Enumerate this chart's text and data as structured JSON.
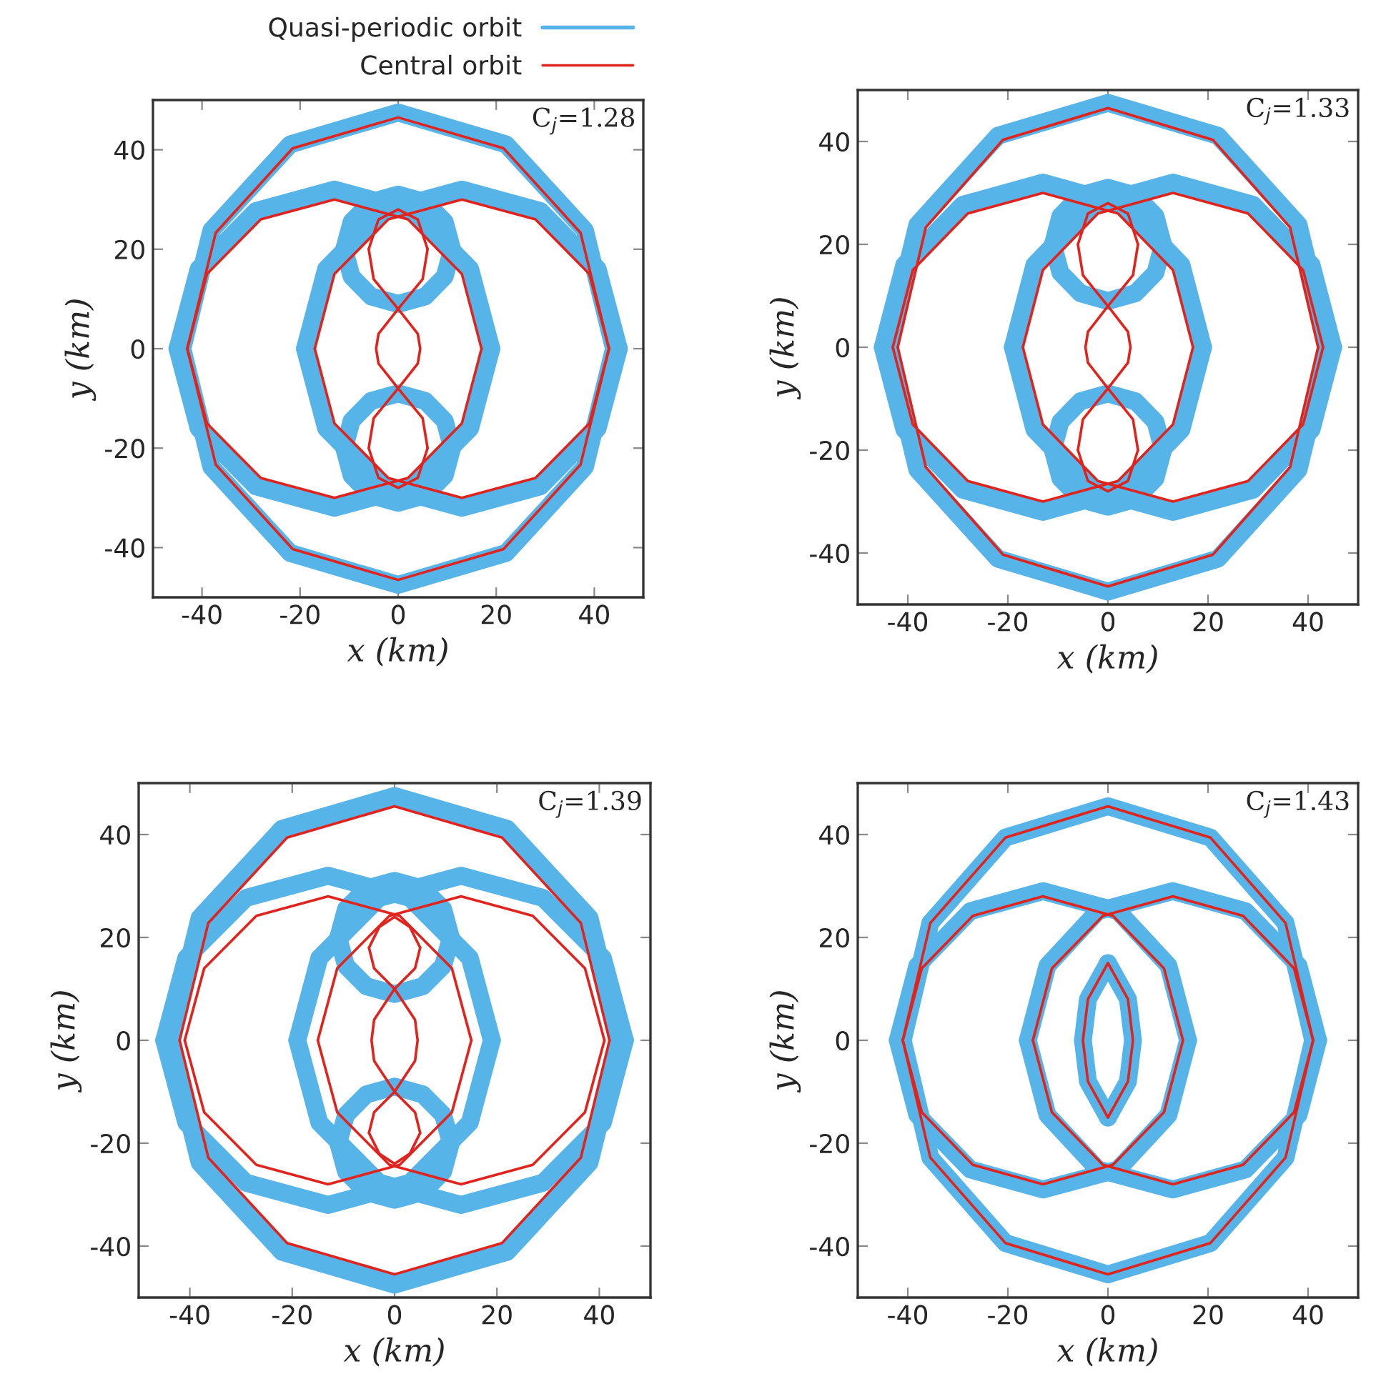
{
  "chart_data": [
    {
      "type": "line",
      "xlabel": "x (km)",
      "ylabel": "y (km)",
      "annotations": [
        "C$_{j}$=1.28"
      ],
      "xlim": [
        -50,
        50
      ],
      "ylim": [
        -50,
        50
      ],
      "xticks": [
        -40,
        -20,
        0,
        20,
        40
      ],
      "yticks": [
        -40,
        -20,
        0,
        20,
        40
      ],
      "legend": "top",
      "series": [
        {
          "name": "Quasi-periodic orbit",
          "color": "#56b4e9",
          "x": [
            -44,
            -38.1,
            -22,
            0,
            22,
            38.1,
            44
          ],
          "values": [
            0,
            23.8,
            41.1,
            47.5,
            41.1,
            23.8,
            0
          ]
        },
        {
          "color": "#56b4e9",
          "x": [
            -44,
            -38.1,
            -22,
            0,
            22,
            38.1,
            44
          ],
          "values": [
            0,
            -23.8,
            -41.1,
            -47.5,
            -41.1,
            -23.8,
            0
          ]
        },
        {
          "color": "#56b4e9",
          "x": [
            -19,
            -14.7,
            -3,
            13,
            29,
            40.7,
            45
          ],
          "values": [
            0,
            16,
            27.7,
            32,
            27.7,
            16,
            0
          ]
        },
        {
          "color": "#56b4e9",
          "x": [
            -19,
            -14.7,
            -3,
            13,
            29,
            40.7,
            45
          ],
          "values": [
            0,
            -16,
            -27.7,
            -32,
            -27.7,
            -16,
            0
          ]
        },
        {
          "color": "#56b4e9",
          "x": [
            -45,
            -40.7,
            -29,
            -13,
            3,
            14.7,
            19
          ],
          "values": [
            0,
            16,
            27.7,
            32,
            27.7,
            16,
            0
          ]
        },
        {
          "color": "#56b4e9",
          "x": [
            -45,
            -40.7,
            -29,
            -13,
            3,
            14.7,
            19
          ],
          "values": [
            0,
            -16,
            -27.7,
            -32,
            -27.7,
            -16,
            0
          ]
        },
        {
          "color": "#56b4e9",
          "x": [
            -11,
            -9.5,
            -5.5,
            0,
            5.5,
            9.5,
            11
          ],
          "values": [
            20,
            25.5,
            29.5,
            31,
            29.5,
            25.5,
            20
          ]
        },
        {
          "color": "#56b4e9",
          "x": [
            -11,
            -9.5,
            -5.5,
            0,
            5.5,
            9.5,
            11
          ],
          "values": [
            20,
            14.5,
            10.5,
            9,
            10.5,
            14.5,
            20
          ]
        },
        {
          "color": "#56b4e9",
          "x": [
            -11,
            -9.5,
            -5.5,
            0,
            5.5,
            9.5,
            11
          ],
          "values": [
            -20,
            -14.5,
            -10.5,
            -9,
            -10.5,
            -14.5,
            -20
          ]
        },
        {
          "color": "#56b4e9",
          "x": [
            -11,
            -9.5,
            -5.5,
            0,
            5.5,
            9.5,
            11
          ],
          "values": [
            -20,
            -25.5,
            -29.5,
            -31,
            -29.5,
            -25.5,
            -20
          ]
        },
        {
          "name": "Central orbit",
          "color": "#e0231c",
          "x": [
            -43,
            -37.2,
            -21.5,
            0,
            21.5,
            37.2,
            43
          ],
          "values": [
            0,
            23.3,
            40.3,
            46.5,
            40.3,
            23.3,
            0
          ]
        },
        {
          "color": "#e0231c",
          "x": [
            -43,
            -37.2,
            -21.5,
            0,
            21.5,
            37.2,
            43
          ],
          "values": [
            0,
            -23.3,
            -40.3,
            -46.5,
            -40.3,
            -23.3,
            0
          ]
        },
        {
          "color": "#e0231c",
          "x": [
            -17,
            -13,
            -2,
            13,
            28,
            39,
            43
          ],
          "values": [
            0,
            15,
            26,
            30,
            26,
            15,
            0
          ]
        },
        {
          "color": "#e0231c",
          "x": [
            -17,
            -13,
            -2,
            13,
            28,
            39,
            43
          ],
          "values": [
            0,
            -15,
            -26,
            -30,
            -26,
            -15,
            0
          ]
        },
        {
          "color": "#e0231c",
          "x": [
            -43,
            -39,
            -28,
            -13,
            2,
            13,
            17
          ],
          "values": [
            0,
            15,
            26,
            30,
            26,
            15,
            0
          ]
        },
        {
          "color": "#e0231c",
          "x": [
            -43,
            -39,
            -28,
            -13,
            2,
            13,
            17
          ],
          "values": [
            0,
            -15,
            -26,
            -30,
            -26,
            -15,
            0
          ]
        },
        {
          "color": "#e0231c",
          "x": [
            -6,
            -4,
            0,
            4,
            6
          ],
          "values": [
            20,
            26,
            28,
            26,
            20
          ]
        },
        {
          "color": "#e0231c",
          "x": [
            -6,
            -5,
            0,
            4,
            4.5,
            4,
            0,
            -5,
            -6
          ],
          "values": [
            20,
            14,
            8,
            3,
            0,
            -3,
            -8,
            -14,
            -20
          ]
        },
        {
          "color": "#e0231c",
          "x": [
            6,
            5,
            0,
            -4,
            -4.5,
            -4,
            0,
            5,
            6
          ],
          "values": [
            20,
            14,
            8,
            3,
            0,
            -3,
            -8,
            -14,
            -20
          ]
        },
        {
          "color": "#e0231c",
          "x": [
            -6,
            -4,
            0,
            4,
            6
          ],
          "values": [
            -20,
            -26,
            -28,
            -26,
            -20
          ]
        }
      ]
    },
    {
      "type": "line",
      "xlabel": "x (km)",
      "ylabel": "y (km)",
      "annotations": [
        "C$_{j}$=1.33"
      ],
      "xlim": [
        -50,
        50
      ],
      "ylim": [
        -50,
        50
      ],
      "xticks": [
        -40,
        -20,
        0,
        20,
        40
      ],
      "yticks": [
        -40,
        -20,
        0,
        20,
        40
      ],
      "series": [
        {
          "color": "#56b4e9",
          "x": [
            -44,
            -38.1,
            -22,
            0,
            22,
            38.1,
            44
          ],
          "values": [
            0,
            23.8,
            41.1,
            47.5,
            41.1,
            23.8,
            0
          ]
        },
        {
          "color": "#56b4e9",
          "x": [
            -44,
            -38.1,
            -22,
            0,
            22,
            38.1,
            44
          ],
          "values": [
            0,
            -23.8,
            -41.1,
            -47.5,
            -41.1,
            -23.8,
            0
          ]
        },
        {
          "color": "#56b4e9",
          "x": [
            -19,
            -14.7,
            -3,
            13,
            29,
            40.7,
            45
          ],
          "values": [
            0,
            16,
            27.7,
            32,
            27.7,
            16,
            0
          ]
        },
        {
          "color": "#56b4e9",
          "x": [
            -19,
            -14.7,
            -3,
            13,
            29,
            40.7,
            45
          ],
          "values": [
            0,
            -16,
            -27.7,
            -32,
            -27.7,
            -16,
            0
          ]
        },
        {
          "color": "#56b4e9",
          "x": [
            -45,
            -40.7,
            -29,
            -13,
            3,
            14.7,
            19
          ],
          "values": [
            0,
            16,
            27.7,
            32,
            27.7,
            16,
            0
          ]
        },
        {
          "color": "#56b4e9",
          "x": [
            -45,
            -40.7,
            -29,
            -13,
            3,
            14.7,
            19
          ],
          "values": [
            0,
            -16,
            -27.7,
            -32,
            -27.7,
            -16,
            0
          ]
        },
        {
          "color": "#56b4e9",
          "x": [
            -11,
            -9.5,
            -5.5,
            0,
            5.5,
            9.5,
            11
          ],
          "values": [
            20,
            25.5,
            29.5,
            31,
            29.5,
            25.5,
            20
          ]
        },
        {
          "color": "#56b4e9",
          "x": [
            -11,
            -9.5,
            -5.5,
            0,
            5.5,
            9.5,
            11
          ],
          "values": [
            20,
            14.5,
            10.5,
            9,
            10.5,
            14.5,
            20
          ]
        },
        {
          "color": "#56b4e9",
          "x": [
            -11,
            -9.5,
            -5.5,
            0,
            5.5,
            9.5,
            11
          ],
          "values": [
            -20,
            -14.5,
            -10.5,
            -9,
            -10.5,
            -14.5,
            -20
          ]
        },
        {
          "color": "#56b4e9",
          "x": [
            -11,
            -9.5,
            -5.5,
            0,
            5.5,
            9.5,
            11
          ],
          "values": [
            -20,
            -25.5,
            -29.5,
            -31,
            -29.5,
            -25.5,
            -20
          ]
        },
        {
          "color": "#e0231c",
          "x": [
            -42,
            -36.4,
            -21,
            0,
            21,
            36.4,
            42
          ],
          "values": [
            0,
            23.3,
            40.3,
            46.5,
            40.3,
            23.3,
            0
          ]
        },
        {
          "color": "#e0231c",
          "x": [
            -42,
            -36.4,
            -21,
            0,
            21,
            36.4,
            42
          ],
          "values": [
            0,
            -23.3,
            -40.3,
            -46.5,
            -40.3,
            -23.3,
            0
          ]
        },
        {
          "color": "#e0231c",
          "x": [
            -17,
            -13,
            -2,
            13,
            28,
            39,
            43
          ],
          "values": [
            0,
            15,
            26,
            30,
            26,
            15,
            0
          ]
        },
        {
          "color": "#e0231c",
          "x": [
            -17,
            -13,
            -2,
            13,
            28,
            39,
            43
          ],
          "values": [
            0,
            -15,
            -26,
            -30,
            -26,
            -15,
            0
          ]
        },
        {
          "color": "#e0231c",
          "x": [
            -43,
            -39,
            -28,
            -13,
            2,
            13,
            17
          ],
          "values": [
            0,
            15,
            26,
            30,
            26,
            15,
            0
          ]
        },
        {
          "color": "#e0231c",
          "x": [
            -43,
            -39,
            -28,
            -13,
            2,
            13,
            17
          ],
          "values": [
            0,
            -15,
            -26,
            -30,
            -26,
            -15,
            0
          ]
        },
        {
          "color": "#e0231c",
          "x": [
            -6,
            -4,
            0,
            4,
            6
          ],
          "values": [
            20,
            26,
            28,
            26,
            20
          ]
        },
        {
          "color": "#e0231c",
          "x": [
            -6,
            -5,
            0,
            4,
            4.5,
            4,
            0,
            -5,
            -6
          ],
          "values": [
            20,
            14,
            8,
            3,
            0,
            -3,
            -8,
            -14,
            -20
          ]
        },
        {
          "color": "#e0231c",
          "x": [
            6,
            5,
            0,
            -4,
            -4.5,
            -4,
            0,
            5,
            6
          ],
          "values": [
            20,
            14,
            8,
            3,
            0,
            -3,
            -8,
            -14,
            -20
          ]
        },
        {
          "color": "#e0231c",
          "x": [
            -6,
            -4,
            0,
            4,
            6
          ],
          "values": [
            -20,
            -26,
            -28,
            -26,
            -20
          ]
        }
      ]
    },
    {
      "type": "line",
      "xlabel": "x (km)",
      "ylabel": "y (km)",
      "annotations": [
        "C$_{j}$=1.39"
      ],
      "xlim": [
        -50,
        50
      ],
      "ylim": [
        -50,
        50
      ],
      "xticks": [
        -40,
        -20,
        0,
        20,
        40
      ],
      "yticks": [
        -40,
        -20,
        0,
        20,
        40
      ],
      "series": [
        {
          "color": "#56b4e9",
          "x": [
            -44,
            -38.1,
            -22,
            0,
            22,
            38.1,
            44
          ],
          "values": [
            0,
            23.8,
            41.1,
            47.5,
            41.1,
            23.8,
            0
          ]
        },
        {
          "color": "#56b4e9",
          "x": [
            -44,
            -38.1,
            -22,
            0,
            22,
            38.1,
            44
          ],
          "values": [
            0,
            -23.8,
            -41.1,
            -47.5,
            -41.1,
            -23.8,
            0
          ]
        },
        {
          "color": "#56b4e9",
          "x": [
            -19,
            -14.7,
            -3,
            13,
            29,
            40.7,
            45
          ],
          "values": [
            0,
            16,
            27.7,
            32,
            27.7,
            16,
            0
          ]
        },
        {
          "color": "#56b4e9",
          "x": [
            -19,
            -14.7,
            -3,
            13,
            29,
            40.7,
            45
          ],
          "values": [
            0,
            -16,
            -27.7,
            -32,
            -27.7,
            -16,
            0
          ]
        },
        {
          "color": "#56b4e9",
          "x": [
            -45,
            -40.7,
            -29,
            -13,
            3,
            14.7,
            19
          ],
          "values": [
            0,
            16,
            27.7,
            32,
            27.7,
            16,
            0
          ]
        },
        {
          "color": "#56b4e9",
          "x": [
            -45,
            -40.7,
            -29,
            -13,
            3,
            14.7,
            19
          ],
          "values": [
            0,
            -16,
            -27.7,
            -32,
            -27.7,
            -16,
            0
          ]
        },
        {
          "color": "#56b4e9",
          "x": [
            -11,
            -9.5,
            -5.5,
            0,
            5.5,
            9.5,
            11
          ],
          "values": [
            20,
            25.5,
            29.5,
            31,
            29.5,
            25.5,
            20
          ]
        },
        {
          "color": "#56b4e9",
          "x": [
            -11,
            -9.5,
            -5.5,
            0,
            5.5,
            9.5,
            11
          ],
          "values": [
            20,
            14.5,
            10.5,
            9,
            10.5,
            14.5,
            20
          ]
        },
        {
          "color": "#56b4e9",
          "x": [
            -11,
            -9.5,
            -5.5,
            0,
            5.5,
            9.5,
            11
          ],
          "values": [
            -20,
            -14.5,
            -10.5,
            -9,
            -10.5,
            -14.5,
            -20
          ]
        },
        {
          "color": "#56b4e9",
          "x": [
            -11,
            -9.5,
            -5.5,
            0,
            5.5,
            9.5,
            11
          ],
          "values": [
            -20,
            -25.5,
            -29.5,
            -31,
            -29.5,
            -25.5,
            -20
          ]
        },
        {
          "color": "#e0231c",
          "x": [
            -42,
            -36.4,
            -21,
            0,
            21,
            36.4,
            42
          ],
          "values": [
            0,
            22.8,
            39.4,
            45.5,
            39.4,
            22.8,
            0
          ]
        },
        {
          "color": "#e0231c",
          "x": [
            -42,
            -36.4,
            -21,
            0,
            21,
            36.4,
            42
          ],
          "values": [
            0,
            -22.8,
            -39.4,
            -45.5,
            -39.4,
            -22.8,
            0
          ]
        },
        {
          "color": "#e0231c",
          "x": [
            -15,
            -11.2,
            -1,
            13,
            27,
            37.2,
            41
          ],
          "values": [
            0,
            14,
            24.2,
            28,
            24.2,
            14,
            0
          ]
        },
        {
          "color": "#e0231c",
          "x": [
            -15,
            -11.2,
            -1,
            13,
            27,
            37.2,
            41
          ],
          "values": [
            0,
            -14,
            -24.2,
            -28,
            -24.2,
            -14,
            0
          ]
        },
        {
          "color": "#e0231c",
          "x": [
            -41,
            -37.2,
            -27,
            -13,
            1,
            11.2,
            15
          ],
          "values": [
            0,
            14,
            24.2,
            28,
            24.2,
            14,
            0
          ]
        },
        {
          "color": "#e0231c",
          "x": [
            -41,
            -37.2,
            -27,
            -13,
            1,
            11.2,
            15
          ],
          "values": [
            0,
            -14,
            -24.2,
            -28,
            -24.2,
            -14,
            0
          ]
        },
        {
          "color": "#e0231c",
          "x": [
            -5,
            -3,
            0,
            3,
            5
          ],
          "values": [
            18,
            22,
            24,
            22,
            18
          ]
        },
        {
          "color": "#e0231c",
          "x": [
            -5,
            -4,
            0,
            4,
            4.5,
            4,
            0,
            -4,
            -5
          ],
          "values": [
            18,
            14,
            10,
            4,
            0,
            -4,
            -10,
            -14,
            -18
          ]
        },
        {
          "color": "#e0231c",
          "x": [
            5,
            4,
            0,
            -4,
            -4.5,
            -4,
            0,
            4,
            5
          ],
          "values": [
            18,
            14,
            10,
            4,
            0,
            -4,
            -10,
            -14,
            -18
          ]
        },
        {
          "color": "#e0231c",
          "x": [
            -5,
            -3,
            0,
            3,
            5
          ],
          "values": [
            -18,
            -22,
            -24,
            -22,
            -18
          ]
        }
      ]
    },
    {
      "type": "line",
      "xlabel": "x (km)",
      "ylabel": "y (km)",
      "annotations": [
        "C$_{j}$=1.43"
      ],
      "xlim": [
        -50,
        50
      ],
      "ylim": [
        -50,
        50
      ],
      "xticks": [
        -40,
        -20,
        0,
        20,
        40
      ],
      "yticks": [
        -40,
        -20,
        0,
        20,
        40
      ],
      "series": [
        {
          "color": "#56b4e9",
          "x": [
            -41,
            -35.5,
            -20.5,
            0,
            20.5,
            35.5,
            41
          ],
          "values": [
            0,
            22.8,
            39.4,
            45.5,
            39.4,
            22.8,
            0
          ]
        },
        {
          "color": "#56b4e9",
          "x": [
            -41,
            -35.5,
            -20.5,
            0,
            20.5,
            35.5,
            41
          ],
          "values": [
            0,
            -22.8,
            -39.4,
            -45.5,
            -39.4,
            -22.8,
            0
          ]
        },
        {
          "color": "#56b4e9",
          "x": [
            -16,
            -12.1,
            -2,
            13,
            27.5,
            38.1,
            42
          ],
          "values": [
            0,
            14.5,
            25.1,
            29,
            25.1,
            14.5,
            0
          ]
        },
        {
          "color": "#56b4e9",
          "x": [
            -16,
            -12.1,
            -2,
            13,
            27.5,
            38.1,
            42
          ],
          "values": [
            0,
            -14.5,
            -25.1,
            -29,
            -25.1,
            -14.5,
            0
          ]
        },
        {
          "color": "#56b4e9",
          "x": [
            -42,
            -38.1,
            -27.5,
            -13,
            2,
            12.1,
            16
          ],
          "values": [
            0,
            14.5,
            25.1,
            29,
            25.1,
            14.5,
            0
          ]
        },
        {
          "color": "#56b4e9",
          "x": [
            -42,
            -38.1,
            -27.5,
            -13,
            2,
            12.1,
            16
          ],
          "values": [
            0,
            -14.5,
            -25.1,
            -29,
            -25.1,
            -14.5,
            0
          ]
        },
        {
          "color": "#56b4e9",
          "x": [
            0,
            4,
            5,
            4,
            0
          ],
          "values": [
            15,
            8,
            0,
            -8,
            -15
          ]
        },
        {
          "color": "#56b4e9",
          "x": [
            0,
            -4,
            -5,
            -4,
            0
          ],
          "values": [
            15,
            8,
            0,
            -8,
            -15
          ]
        },
        {
          "color": "#e0231c",
          "x": [
            -41,
            -35.5,
            -20.5,
            0,
            20.5,
            35.5,
            41
          ],
          "values": [
            0,
            22.8,
            39.4,
            45.5,
            39.4,
            22.8,
            0
          ]
        },
        {
          "color": "#e0231c",
          "x": [
            -41,
            -35.5,
            -20.5,
            0,
            20.5,
            35.5,
            41
          ],
          "values": [
            0,
            -22.8,
            -39.4,
            -45.5,
            -39.4,
            -22.8,
            0
          ]
        },
        {
          "color": "#e0231c",
          "x": [
            -15,
            -11.2,
            -1,
            13,
            27,
            37.2,
            41
          ],
          "values": [
            0,
            14,
            24.2,
            28,
            24.2,
            14,
            0
          ]
        },
        {
          "color": "#e0231c",
          "x": [
            -15,
            -11.2,
            -1,
            13,
            27,
            37.2,
            41
          ],
          "values": [
            0,
            -14,
            -24.2,
            -28,
            -24.2,
            -14,
            0
          ]
        },
        {
          "color": "#e0231c",
          "x": [
            -41,
            -37.2,
            -27,
            -13,
            1,
            11.2,
            15
          ],
          "values": [
            0,
            14,
            24.2,
            28,
            24.2,
            14,
            0
          ]
        },
        {
          "color": "#e0231c",
          "x": [
            -41,
            -37.2,
            -27,
            -13,
            1,
            11.2,
            15
          ],
          "values": [
            0,
            -14,
            -24.2,
            -28,
            -24.2,
            -14,
            0
          ]
        },
        {
          "color": "#e0231c",
          "x": [
            0,
            4,
            5,
            4,
            0
          ],
          "values": [
            15,
            8,
            0,
            -8,
            -15
          ]
        },
        {
          "color": "#e0231c",
          "x": [
            0,
            -4,
            -5,
            -4,
            0
          ],
          "values": [
            15,
            8,
            0,
            -8,
            -15
          ]
        }
      ]
    }
  ]
}
